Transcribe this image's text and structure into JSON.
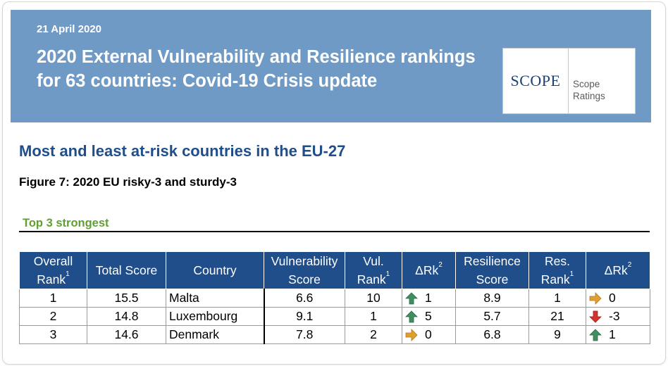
{
  "header": {
    "date": "21 April 2020",
    "title": "2020 External Vulnerability and Resilience rankings for 63 countries: Covid-19 Crisis update",
    "logo_word": "SCOPE",
    "logo_label_1": "Scope",
    "logo_label_2": "Ratings"
  },
  "section": {
    "heading": "Most and least at-risk countries in the EU-27",
    "figure": "Figure 7: 2020 EU risky-3 and sturdy-3",
    "subheading": "Top 3 strongest"
  },
  "table": {
    "headers": {
      "overall_rank": "Overall Rank",
      "overall_rank_sup": "1",
      "total_score": "Total Score",
      "country": "Country",
      "vulnerability_score": "Vulnerability Score",
      "vul_rank": "Vul. Rank",
      "vul_rank_sup": "1",
      "drk1": "ΔRk",
      "drk1_sup": "2",
      "resilience_score": "Resilience Score",
      "res_rank": "Res. Rank",
      "res_rank_sup": "1",
      "drk2": "ΔRk",
      "drk2_sup": "2"
    },
    "rows": [
      {
        "overall_rank": "1",
        "total_score": "15.5",
        "country": "Malta",
        "vulnerability_score": "6.6",
        "vul_rank": "10",
        "vul_drk": "1",
        "vul_arrow": "up-green-arrow-icon",
        "resilience_score": "8.9",
        "res_rank": "1",
        "res_drk": "0",
        "res_arrow": "right-orange-arrow-icon"
      },
      {
        "overall_rank": "2",
        "total_score": "14.8",
        "country": "Luxembourg",
        "vulnerability_score": "9.1",
        "vul_rank": "1",
        "vul_drk": "5",
        "vul_arrow": "up-green-arrow-icon",
        "resilience_score": "5.7",
        "res_rank": "21",
        "res_drk": "-3",
        "res_arrow": "down-red-arrow-icon"
      },
      {
        "overall_rank": "3",
        "total_score": "14.6",
        "country": "Denmark",
        "vulnerability_score": "7.8",
        "vul_rank": "2",
        "vul_drk": "0",
        "vul_arrow": "right-orange-arrow-icon",
        "resilience_score": "6.8",
        "res_rank": "9",
        "res_drk": "1",
        "res_arrow": "up-green-arrow-icon"
      }
    ]
  },
  "colors": {
    "banner": "#6f9ac6",
    "header_fill": "#1f4e8a",
    "heading_text": "#1f4e8a",
    "subheading_green": "#5fa030",
    "arrow_up_green": "#3f8f5f",
    "arrow_right_orange": "#e0a030",
    "arrow_down_red": "#d0342c"
  }
}
